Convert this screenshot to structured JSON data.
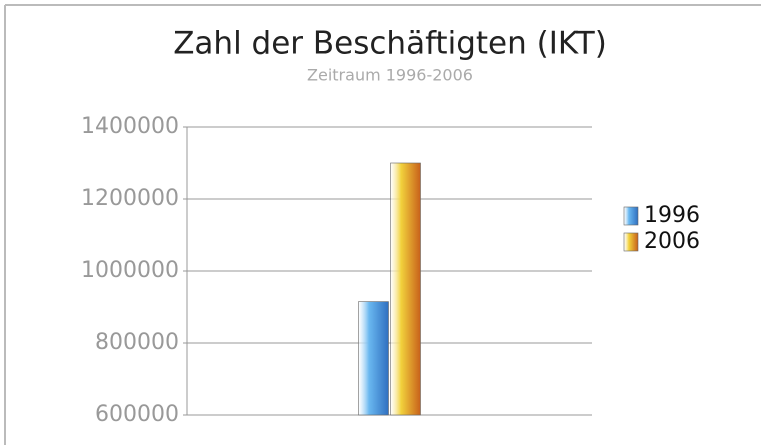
{
  "chart_data": {
    "type": "bar",
    "title": "Zahl der Beschäftigten (IKT)",
    "subtitle": "Zeitraum 1996-2006",
    "categories": [
      null
    ],
    "series": [
      {
        "name": "1996",
        "color": "#6ab8f0",
        "values": [
          915000
        ]
      },
      {
        "name": "2006",
        "color": "#f2d23c",
        "values": [
          1300000
        ]
      }
    ],
    "ylim": [
      600000,
      1400000
    ],
    "yticks": [
      600000,
      800000,
      1000000,
      1200000,
      1400000
    ],
    "grid": true,
    "legend": "right"
  }
}
